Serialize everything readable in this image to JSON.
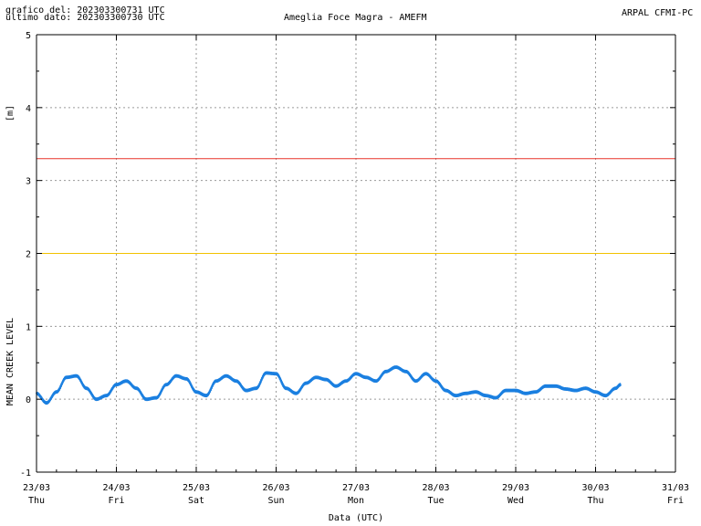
{
  "header": {
    "graph_date": "grafico del: 202303300731 UTC",
    "last_data": "ultimo dato: 202303300730 UTC",
    "station": "Ameglia Foce Magra - AMEFM",
    "agency": "ARPAL CFMI-PC"
  },
  "chart_data": {
    "type": "line",
    "title": "Ameglia Foce Magra - AMEFM",
    "xlabel": "Data (UTC)",
    "ylabel": "MEAN CREEK LEVEL",
    "y_unit": "[m]",
    "ylim": [
      -1,
      5
    ],
    "yticks": [
      -1,
      0,
      1,
      2,
      3,
      4,
      5
    ],
    "xlim": [
      "2023-03-23 00:00",
      "2023-03-31 00:00"
    ],
    "xticks": [
      {
        "date": "23/03",
        "day": "Thu"
      },
      {
        "date": "24/03",
        "day": "Fri"
      },
      {
        "date": "25/03",
        "day": "Sat"
      },
      {
        "date": "26/03",
        "day": "Sun"
      },
      {
        "date": "27/03",
        "day": "Mon"
      },
      {
        "date": "28/03",
        "day": "Tue"
      },
      {
        "date": "29/03",
        "day": "Wed"
      },
      {
        "date": "30/03",
        "day": "Thu"
      },
      {
        "date": "31/03",
        "day": "Fri"
      }
    ],
    "grid": true,
    "thresholds": [
      {
        "value": 3.3,
        "color": "#e8332a"
      },
      {
        "value": 2.0,
        "color": "#f2c200"
      }
    ],
    "series": [
      {
        "color": "#1a7fe0",
        "x": [
          "2023-03-23 00:00",
          "2023-03-23 03:00",
          "2023-03-23 06:00",
          "2023-03-23 09:00",
          "2023-03-23 12:00",
          "2023-03-23 15:00",
          "2023-03-23 18:00",
          "2023-03-23 21:00",
          "2023-03-24 00:00",
          "2023-03-24 03:00",
          "2023-03-24 06:00",
          "2023-03-24 09:00",
          "2023-03-24 12:00",
          "2023-03-24 15:00",
          "2023-03-24 18:00",
          "2023-03-24 21:00",
          "2023-03-25 00:00",
          "2023-03-25 03:00",
          "2023-03-25 06:00",
          "2023-03-25 09:00",
          "2023-03-25 12:00",
          "2023-03-25 15:00",
          "2023-03-25 18:00",
          "2023-03-25 21:00",
          "2023-03-26 00:00",
          "2023-03-26 03:00",
          "2023-03-26 06:00",
          "2023-03-26 09:00",
          "2023-03-26 12:00",
          "2023-03-26 15:00",
          "2023-03-26 18:00",
          "2023-03-26 21:00",
          "2023-03-27 00:00",
          "2023-03-27 03:00",
          "2023-03-27 06:00",
          "2023-03-27 09:00",
          "2023-03-27 12:00",
          "2023-03-27 15:00",
          "2023-03-27 18:00",
          "2023-03-27 21:00",
          "2023-03-28 00:00",
          "2023-03-28 03:00",
          "2023-03-28 06:00",
          "2023-03-28 09:00",
          "2023-03-28 12:00",
          "2023-03-28 15:00",
          "2023-03-28 18:00",
          "2023-03-28 21:00",
          "2023-03-29 00:00",
          "2023-03-29 03:00",
          "2023-03-29 06:00",
          "2023-03-29 09:00",
          "2023-03-29 12:00",
          "2023-03-29 15:00",
          "2023-03-29 18:00",
          "2023-03-29 21:00",
          "2023-03-30 00:00",
          "2023-03-30 03:00",
          "2023-03-30 06:00",
          "2023-03-30 07:30"
        ],
        "y": [
          0.08,
          -0.05,
          0.1,
          0.3,
          0.32,
          0.15,
          0.0,
          0.05,
          0.2,
          0.25,
          0.15,
          0.0,
          0.02,
          0.2,
          0.32,
          0.28,
          0.1,
          0.05,
          0.25,
          0.32,
          0.25,
          0.12,
          0.15,
          0.36,
          0.35,
          0.15,
          0.08,
          0.22,
          0.3,
          0.27,
          0.18,
          0.25,
          0.35,
          0.3,
          0.25,
          0.38,
          0.44,
          0.38,
          0.25,
          0.35,
          0.25,
          0.12,
          0.05,
          0.08,
          0.1,
          0.05,
          0.02,
          0.12,
          0.12,
          0.08,
          0.1,
          0.18,
          0.18,
          0.14,
          0.12,
          0.15,
          0.1,
          0.05,
          0.15,
          0.2
        ]
      }
    ]
  }
}
